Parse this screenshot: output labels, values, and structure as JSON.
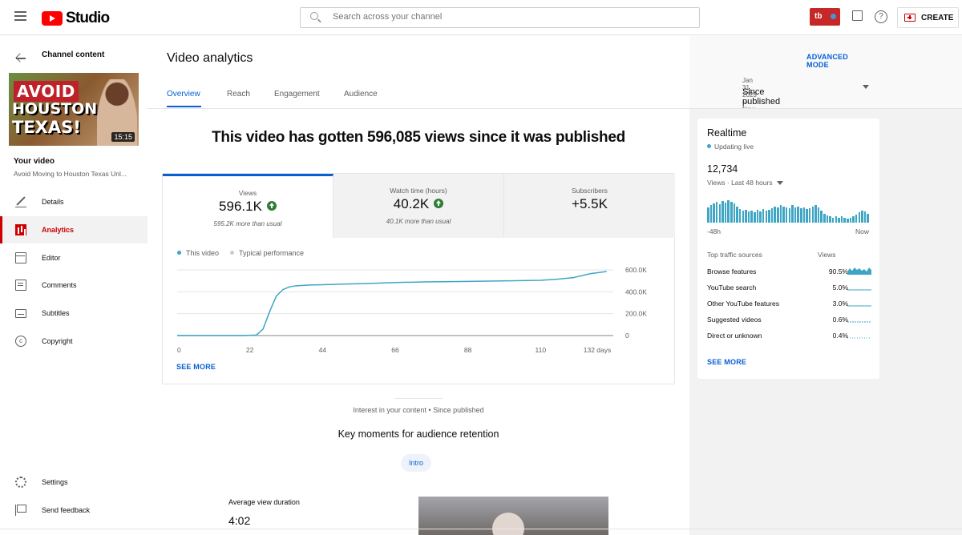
{
  "app": {
    "brand": "Studio"
  },
  "search": {
    "placeholder": "Search across your channel"
  },
  "header": {
    "badge_text": "tb",
    "create_label": "CREATE"
  },
  "sidebar": {
    "back_label": "Channel content",
    "thumbnail": {
      "line1": "AVOID",
      "line2": "HOUSTON",
      "line3": "TEXAS!",
      "duration": "15:15"
    },
    "your_video_label": "Your video",
    "video_title": "Avoid Moving to Houston Texas Unl...",
    "items": [
      {
        "label": "Details",
        "icon": "pencil-icon"
      },
      {
        "label": "Analytics",
        "icon": "analytics-icon",
        "active": true
      },
      {
        "label": "Editor",
        "icon": "editor-icon"
      },
      {
        "label": "Comments",
        "icon": "comments-icon"
      },
      {
        "label": "Subtitles",
        "icon": "subtitles-icon"
      },
      {
        "label": "Copyright",
        "icon": "copyright-icon"
      }
    ],
    "bottom_items": [
      {
        "label": "Settings",
        "icon": "gear-icon"
      },
      {
        "label": "Send feedback",
        "icon": "feedback-icon"
      }
    ]
  },
  "main": {
    "title": "Video analytics",
    "advanced_mode": "ADVANCED MODE",
    "tabs": [
      {
        "label": "Overview",
        "active": true
      },
      {
        "label": "Reach"
      },
      {
        "label": "Engagement"
      },
      {
        "label": "Audience"
      }
    ],
    "date_range": {
      "range": "Jan 31, 2023 — Now",
      "label": "Since published"
    },
    "headline": "This video has gotten 596,085 views since it was published",
    "metrics": [
      {
        "label": "Views",
        "value": "596.1K",
        "sub": "595.2K more than usual",
        "up": true
      },
      {
        "label": "Watch time (hours)",
        "value": "40.2K",
        "sub": "40.1K more than usual",
        "up": true
      },
      {
        "label": "Subscribers",
        "value": "+5.5K",
        "sub": "",
        "up": false
      }
    ],
    "legend": {
      "this_video": "This video",
      "typical": "Typical performance"
    },
    "see_more": "SEE MORE",
    "interest_caption": "Interest in your content • Since published",
    "key_moments_title": "Key moments for audience retention",
    "intro_chip": "Intro",
    "avg_view_duration_label": "Average view duration",
    "avg_view_duration_value": "4:02"
  },
  "chart_data": {
    "type": "line",
    "x_tick_labels": [
      "0",
      "22",
      "44",
      "66",
      "88",
      "110",
      "132 days"
    ],
    "y_tick_labels": [
      "600.0K",
      "400.0K",
      "200.0K",
      "0"
    ],
    "xlim": [
      0,
      132
    ],
    "ylim": [
      0,
      600000
    ],
    "grid": true,
    "series": [
      {
        "name": "This video",
        "color": "#3ea6c4",
        "x": [
          0,
          5,
          10,
          15,
          20,
          24,
          26,
          28,
          30,
          32,
          34,
          36,
          40,
          44,
          50,
          55,
          60,
          66,
          75,
          88,
          100,
          110,
          115,
          120,
          125,
          130
        ],
        "y": [
          0,
          0,
          0,
          0,
          0,
          5000,
          60000,
          220000,
          360000,
          420000,
          445000,
          455000,
          462000,
          465000,
          470000,
          474000,
          478000,
          485000,
          490000,
          495000,
          500000,
          505000,
          515000,
          530000,
          565000,
          585000
        ]
      },
      {
        "name": "Typical performance",
        "color": "#bdbdbd",
        "x": [
          0,
          132
        ],
        "y": [
          0,
          0
        ]
      }
    ]
  },
  "realtime": {
    "title": "Realtime",
    "status": "Updating live",
    "count": "12,734",
    "views_label": "Views · Last 48 hours",
    "start_label": "-48h",
    "end_label": "Now",
    "bars": [
      18,
      20,
      22,
      24,
      21,
      25,
      23,
      26,
      24,
      22,
      19,
      16,
      14,
      15,
      13,
      14,
      12,
      15,
      13,
      16,
      14,
      15,
      17,
      19,
      18,
      20,
      19,
      18,
      17,
      20,
      18,
      19,
      17,
      18,
      16,
      17,
      19,
      20,
      18,
      14,
      10,
      8,
      7,
      6,
      7,
      6,
      7,
      6,
      5,
      6,
      7,
      9,
      12,
      14,
      13,
      10
    ],
    "traffic_header": "Top traffic sources",
    "traffic_views_header": "Views",
    "traffic": [
      {
        "name": "Browse features",
        "pct": "90.5%"
      },
      {
        "name": "YouTube search",
        "pct": "5.0%"
      },
      {
        "name": "Other YouTube features",
        "pct": "3.0%"
      },
      {
        "name": "Suggested videos",
        "pct": "0.6%"
      },
      {
        "name": "Direct or unknown",
        "pct": "0.4%"
      }
    ],
    "see_more": "SEE MORE"
  }
}
